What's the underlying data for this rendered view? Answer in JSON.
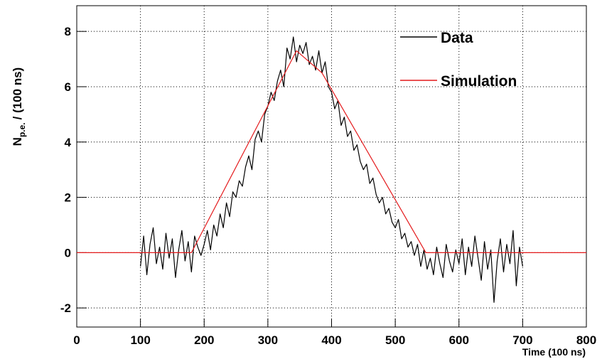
{
  "chart_data": {
    "type": "line",
    "xlabel": "Time (100 ns)",
    "ylabel": "N",
    "ylabel_subscript": "p.e.",
    "ylabel_suffix": "/ (100 ns)",
    "xlim": [
      0,
      800
    ],
    "xticks": [
      0,
      100,
      200,
      300,
      400,
      500,
      600,
      700,
      800
    ],
    "ylim": [
      -2.69,
      8.93
    ],
    "yticks": [
      -2,
      0,
      2,
      4,
      6,
      8
    ],
    "grid": true,
    "legend": "upper right",
    "series": [
      {
        "name": "Data",
        "color": "#000000",
        "x": [
          100,
          105,
          110,
          115,
          120,
          125,
          130,
          135,
          140,
          145,
          150,
          155,
          160,
          165,
          170,
          175,
          180,
          185,
          190,
          195,
          200,
          205,
          210,
          215,
          220,
          225,
          230,
          235,
          240,
          245,
          250,
          255,
          260,
          265,
          270,
          275,
          280,
          285,
          290,
          295,
          300,
          305,
          310,
          315,
          320,
          325,
          330,
          335,
          340,
          345,
          350,
          355,
          360,
          365,
          370,
          375,
          380,
          385,
          390,
          395,
          400,
          405,
          410,
          415,
          420,
          425,
          430,
          435,
          440,
          445,
          450,
          455,
          460,
          465,
          470,
          475,
          480,
          485,
          490,
          495,
          500,
          505,
          510,
          515,
          520,
          525,
          530,
          535,
          540,
          545,
          550,
          555,
          560,
          565,
          570,
          575,
          580,
          585,
          590,
          595,
          600,
          605,
          610,
          615,
          620,
          625,
          630,
          635,
          640,
          645,
          650,
          655,
          660,
          665,
          670,
          675,
          680,
          685,
          690,
          695,
          700
        ],
        "values": [
          -0.5,
          0.6,
          -0.8,
          0.3,
          0.9,
          -0.4,
          0.2,
          -0.6,
          0.7,
          -0.2,
          0.5,
          -0.9,
          0.1,
          0.8,
          -0.3,
          0.4,
          -0.7,
          0.6,
          0.2,
          -0.1,
          0.3,
          0.8,
          0.1,
          1.0,
          0.6,
          1.4,
          0.9,
          1.8,
          1.3,
          2.2,
          2.0,
          2.6,
          2.4,
          3.1,
          3.5,
          3.0,
          4.1,
          4.4,
          4.0,
          5.0,
          5.3,
          5.8,
          5.5,
          6.2,
          6.6,
          6.0,
          7.4,
          7.0,
          7.8,
          6.9,
          7.5,
          7.2,
          7.6,
          6.8,
          7.1,
          6.6,
          7.3,
          6.5,
          6.9,
          6.0,
          5.8,
          5.2,
          5.5,
          4.6,
          4.9,
          4.2,
          4.4,
          3.7,
          3.9,
          3.3,
          3.0,
          3.2,
          2.5,
          2.7,
          2.1,
          1.8,
          2.0,
          1.4,
          1.6,
          1.1,
          0.9,
          1.2,
          0.5,
          0.7,
          0.2,
          0.4,
          -0.1,
          0.3,
          -0.5,
          0.1,
          -0.6,
          -0.2,
          -0.8,
          0.2,
          -0.4,
          -0.9,
          0.3,
          -0.3,
          -0.7,
          0.1,
          -0.4,
          0.5,
          -0.8,
          0.2,
          -0.5,
          0.6,
          -0.2,
          -1.0,
          0.4,
          -0.6,
          0.1,
          -1.8,
          -0.3,
          0.5,
          -0.7,
          0.3,
          -0.4,
          0.8,
          -1.2,
          0.2,
          -0.5
        ]
      },
      {
        "name": "Simulation",
        "color": "#e41a1c",
        "x": [
          0,
          180,
          345,
          385,
          548,
          800
        ],
        "values": [
          0,
          0,
          7.3,
          6.5,
          0,
          0
        ]
      }
    ]
  }
}
